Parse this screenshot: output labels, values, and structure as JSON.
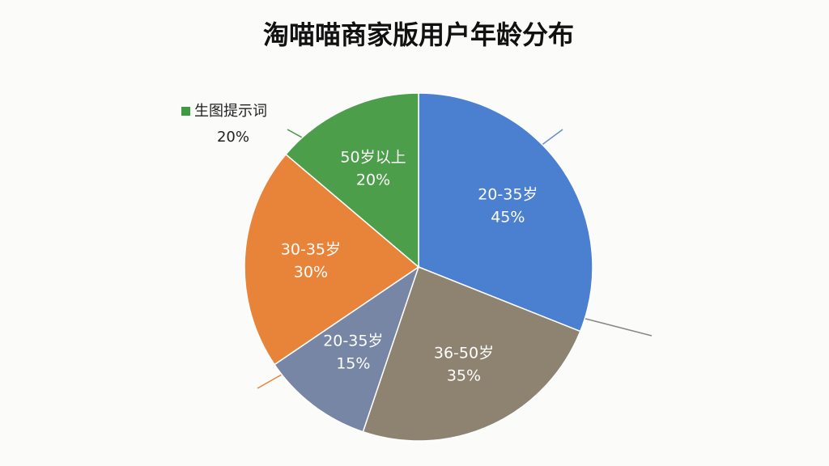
{
  "chart_data": {
    "type": "pie",
    "title": "淘喵喵商家版用户年龄分布",
    "categories": [
      "20-35岁",
      "36-50岁",
      "20-35岁",
      "30-35岁",
      "50岁以上"
    ],
    "values": [
      45,
      35,
      15,
      30,
      20
    ],
    "value_labels": [
      "45%",
      "35%",
      "15%",
      "30%",
      "20%"
    ],
    "colors": [
      "#4b7fcf",
      "#8e8271",
      "#7886a6",
      "#e8843a",
      "#4c9e4a"
    ],
    "note": {
      "label": "生图提示词",
      "value": 20,
      "value_label": "20%",
      "color": "#3f9a46"
    }
  }
}
